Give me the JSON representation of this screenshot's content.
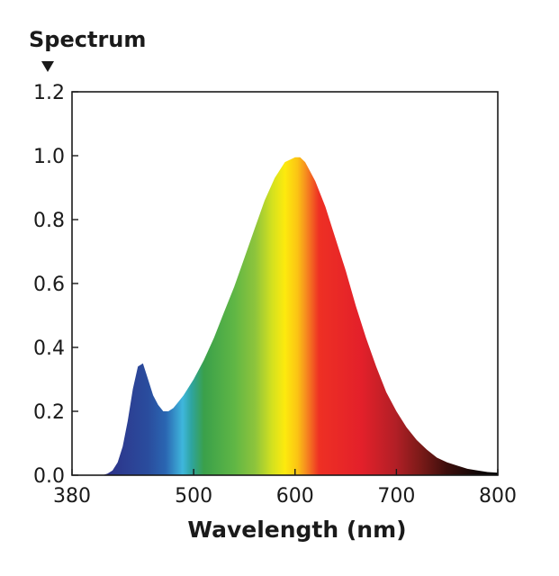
{
  "chart_data": {
    "type": "area",
    "ylabel": "Spectrum",
    "xlabel": "Wavelength (nm)",
    "xlim": [
      380,
      800
    ],
    "ylim": [
      0,
      1.2
    ],
    "x_ticks": [
      380,
      500,
      600,
      700,
      800
    ],
    "y_ticks": [
      "0.0",
      "0.2",
      "0.4",
      "0.6",
      "0.8",
      "1.0",
      "1.2"
    ],
    "grid": false,
    "fill": "visible-spectrum color gradient",
    "x": [
      400,
      410,
      415,
      420,
      425,
      430,
      435,
      440,
      445,
      450,
      455,
      460,
      465,
      470,
      475,
      480,
      485,
      490,
      500,
      510,
      520,
      530,
      540,
      550,
      560,
      570,
      580,
      590,
      600,
      605,
      610,
      615,
      620,
      630,
      640,
      650,
      660,
      670,
      680,
      690,
      700,
      710,
      720,
      730,
      740,
      750,
      760,
      770,
      780,
      790,
      800
    ],
    "values": [
      0.0,
      0.0,
      0.005,
      0.015,
      0.04,
      0.09,
      0.17,
      0.27,
      0.34,
      0.35,
      0.3,
      0.25,
      0.22,
      0.2,
      0.2,
      0.21,
      0.23,
      0.25,
      0.3,
      0.36,
      0.43,
      0.51,
      0.59,
      0.68,
      0.77,
      0.86,
      0.93,
      0.98,
      0.995,
      0.995,
      0.98,
      0.95,
      0.92,
      0.84,
      0.74,
      0.64,
      0.53,
      0.43,
      0.34,
      0.26,
      0.2,
      0.15,
      0.11,
      0.08,
      0.055,
      0.04,
      0.03,
      0.02,
      0.015,
      0.01,
      0.008
    ]
  }
}
